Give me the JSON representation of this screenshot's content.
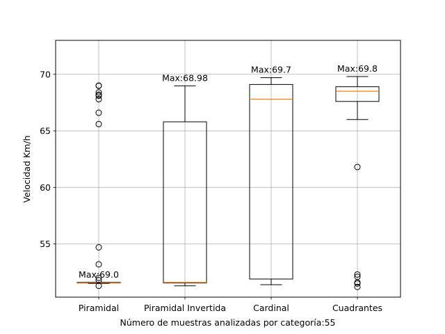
{
  "chart_data": {
    "type": "boxplot",
    "title": "",
    "xlabel": "Número de muestras analizadas por categoría:55",
    "ylabel": "Velocidad Km/h",
    "ylim": [
      50.3,
      73.0
    ],
    "yticks": [
      55,
      60,
      65,
      70
    ],
    "grid": true,
    "categories": [
      "Piramidal",
      "Piramidal Invertida",
      "Cardinal",
      "Cuadrantes"
    ],
    "boxes": [
      {
        "name": "Piramidal",
        "q1": 51.55,
        "median": 51.55,
        "q3": 51.6,
        "whislo": 51.5,
        "whishi": 51.6,
        "fliers": [
          69.0,
          68.98,
          68.4,
          68.2,
          68.1,
          67.8,
          66.6,
          65.6,
          54.7,
          53.2,
          52.0,
          51.8,
          51.3
        ],
        "max_label": "Max:69.0"
      },
      {
        "name": "Piramidal Invertida",
        "q1": 51.55,
        "median": 51.6,
        "q3": 65.8,
        "whislo": 51.3,
        "whishi": 68.98,
        "fliers": [],
        "max_label": "Max:68.98"
      },
      {
        "name": "Cardinal",
        "q1": 51.9,
        "median": 67.8,
        "q3": 69.1,
        "whislo": 51.4,
        "whishi": 69.7,
        "fliers": [],
        "max_label": "Max:69.7"
      },
      {
        "name": "Cuadrantes",
        "q1": 67.6,
        "median": 68.5,
        "q3": 68.9,
        "whislo": 66.0,
        "whishi": 69.8,
        "fliers": [
          61.8,
          52.3,
          52.1,
          51.6,
          51.5,
          51.2
        ],
        "max_label": "Max:69.8"
      }
    ],
    "colors": {
      "box": "#000000",
      "median": "#ff7f0e",
      "grid": "#b0b0b0"
    }
  }
}
